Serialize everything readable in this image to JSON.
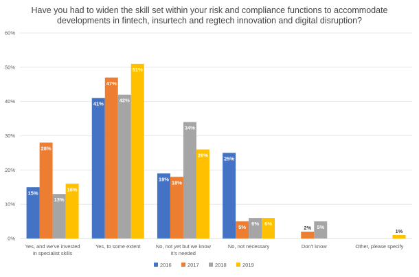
{
  "chart_data": {
    "type": "bar",
    "title_lines": [
      "Have you had to widen the skill set within your risk and compliance functions to accommodate",
      "developments in fintech, insurtech and regtech innovation and digital disruption?"
    ],
    "categories": [
      [
        "Yes, and we've invested",
        "in specialist skills"
      ],
      [
        "Yes, to some extent"
      ],
      [
        "No, not yet but we know",
        "it's needed"
      ],
      [
        "No, not necessary"
      ],
      [
        "Don't know"
      ],
      [
        "Other, please specify"
      ]
    ],
    "series": [
      {
        "name": "2016",
        "color": "#4472C4",
        "values": [
          15,
          41,
          19,
          25,
          null,
          null
        ],
        "labels": [
          "15%",
          "41%",
          "19%",
          "25%",
          "",
          ""
        ]
      },
      {
        "name": "2017",
        "color": "#ED7D31",
        "values": [
          28,
          47,
          18,
          5,
          2,
          null
        ],
        "labels": [
          "28%",
          "47%",
          "18%",
          "5%",
          "2%",
          ""
        ]
      },
      {
        "name": "2018",
        "color": "#A5A5A5",
        "values": [
          13,
          42,
          34,
          6,
          5,
          null
        ],
        "labels": [
          "13%",
          "42%",
          "34%",
          "6%",
          "5%",
          ""
        ]
      },
      {
        "name": "2019",
        "color": "#FFC000",
        "values": [
          16,
          51,
          26,
          6,
          null,
          1
        ],
        "labels": [
          "16%",
          "51%",
          "26%",
          "6%",
          "",
          "1%"
        ]
      }
    ],
    "y_ticks": [
      "0%",
      "10%",
      "20%",
      "30%",
      "40%",
      "50%",
      "60%"
    ],
    "ylim": [
      0,
      60
    ],
    "grid": true,
    "legend_position": "bottom",
    "xlabel": "",
    "ylabel": ""
  }
}
